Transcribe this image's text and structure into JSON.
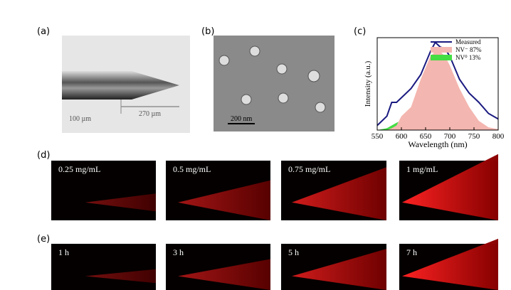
{
  "panels": {
    "a": "(a)",
    "b": "(b)",
    "c": "(c)",
    "d": "(d)",
    "e": "(e)"
  },
  "image_a": {
    "scale": "100 µm",
    "length": "270 µm"
  },
  "image_b": {
    "scale": "200 nm"
  },
  "row_d": [
    "0.25 mg/mL",
    "0.5 mg/mL",
    "0.75 mg/mL",
    "1 mg/mL"
  ],
  "row_e": [
    "1 h",
    "3 h",
    "5 h",
    "7 h"
  ],
  "chart_data": {
    "type": "line",
    "xlabel": "Wavelength (nm)",
    "ylabel": "Intensity (a.u.)",
    "x": [
      550,
      570,
      580,
      590,
      600,
      620,
      640,
      660,
      670,
      680,
      690,
      700,
      720,
      740,
      760,
      780,
      800
    ],
    "series": [
      {
        "name": "Measured",
        "color": "#1a1a80",
        "fill": false,
        "values": [
          0.05,
          0.15,
          0.3,
          0.3,
          0.35,
          0.45,
          0.6,
          0.85,
          0.95,
          0.9,
          0.88,
          0.8,
          0.55,
          0.4,
          0.3,
          0.18,
          0.12
        ]
      },
      {
        "name": "NV⁻ 87%",
        "color": "#f4b6b0",
        "fill": true,
        "values": [
          0,
          0,
          0.02,
          0.05,
          0.15,
          0.25,
          0.55,
          0.8,
          0.85,
          0.85,
          0.8,
          0.7,
          0.45,
          0.25,
          0.1,
          0.03,
          0.01
        ]
      },
      {
        "name": "NV⁰ 13%",
        "color": "#44dd44",
        "fill": true,
        "values": [
          0,
          0.02,
          0.05,
          0.08,
          0.1,
          0.1,
          0.09,
          0.07,
          0.06,
          0.05,
          0.04,
          0.03,
          0.02,
          0.01,
          0,
          0,
          0
        ]
      }
    ],
    "xlim": [
      550,
      800
    ],
    "ylim": [
      0,
      1
    ],
    "xticks": [
      550,
      600,
      650,
      700,
      750,
      800
    ]
  }
}
